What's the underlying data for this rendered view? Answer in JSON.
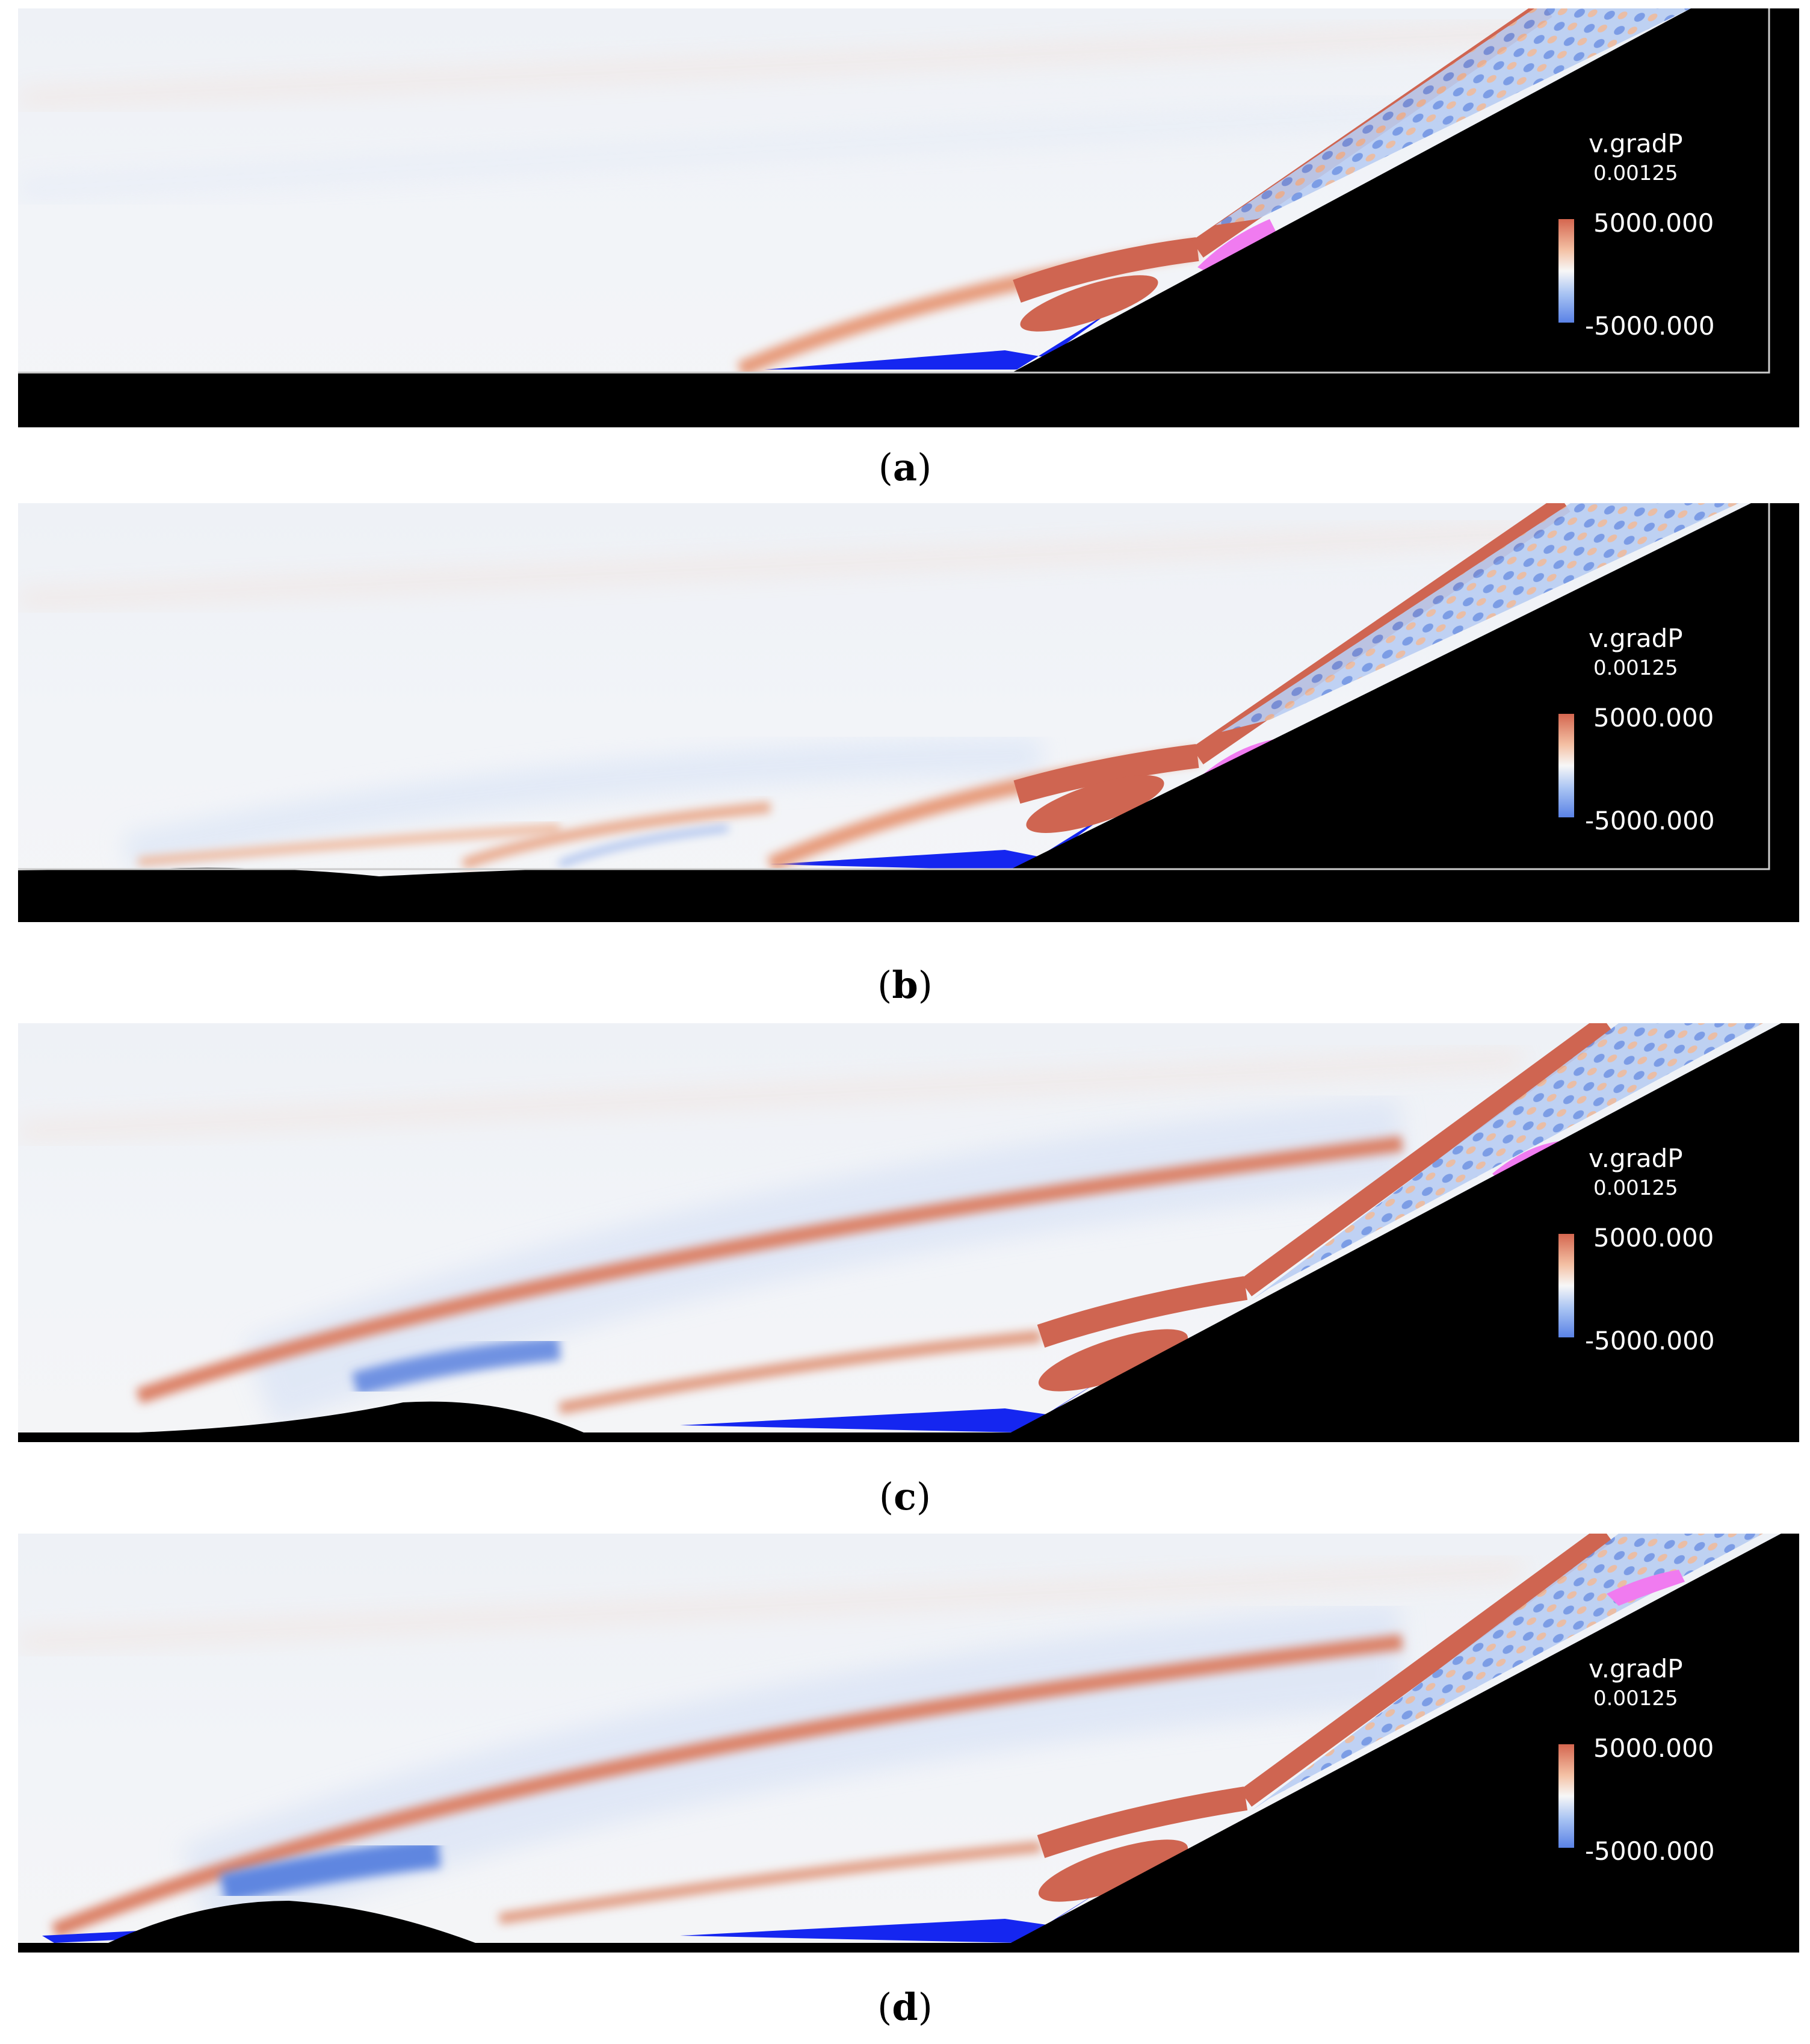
{
  "figure": {
    "panels": [
      {
        "caption": "a",
        "legend": {
          "variable": "v.gradP",
          "time": "0.00125",
          "max": "5000.000",
          "min": "-5000.000"
        },
        "color_scale": {
          "high": "#d4664f",
          "low": "#5a82e6",
          "mid": "#f7f7f7"
        }
      },
      {
        "caption": "b",
        "legend": {
          "variable": "v.gradP",
          "time": "0.00125",
          "max": "5000.000",
          "min": "-5000.000"
        },
        "color_scale": {
          "high": "#d4664f",
          "low": "#5a82e6",
          "mid": "#f7f7f7"
        }
      },
      {
        "caption": "c",
        "legend": {
          "variable": "v.gradP",
          "time": "0.00125",
          "max": "5000.000",
          "min": "-5000.000"
        },
        "color_scale": {
          "high": "#d4664f",
          "low": "#5a82e6",
          "mid": "#f7f7f7"
        }
      },
      {
        "caption": "d",
        "legend": {
          "variable": "v.gradP",
          "time": "0.00125",
          "max": "5000.000",
          "min": "-5000.000"
        },
        "color_scale": {
          "high": "#d4664f",
          "low": "#5a82e6",
          "mid": "#f7f7f7"
        }
      }
    ]
  }
}
